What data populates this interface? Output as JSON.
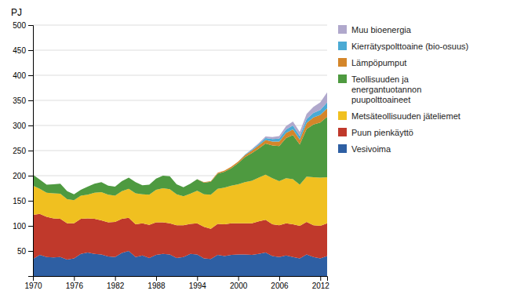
{
  "chart_data": {
    "type": "area",
    "stacked": true,
    "ylabel": "PJ",
    "x": [
      1970,
      1971,
      1972,
      1973,
      1974,
      1975,
      1976,
      1977,
      1978,
      1979,
      1980,
      1981,
      1982,
      1983,
      1984,
      1985,
      1986,
      1987,
      1988,
      1989,
      1990,
      1991,
      1992,
      1993,
      1994,
      1995,
      1996,
      1997,
      1998,
      1999,
      2000,
      2001,
      2002,
      2003,
      2004,
      2005,
      2006,
      2007,
      2008,
      2009,
      2010,
      2011,
      2012,
      2013
    ],
    "series": [
      {
        "name": "Vesivoima",
        "color": "#2E5FA3",
        "values": [
          34,
          42,
          38,
          37,
          38,
          33,
          35,
          44,
          47,
          44,
          43,
          39,
          38,
          46,
          50,
          38,
          41,
          36,
          42,
          44,
          43,
          36,
          38,
          44,
          43,
          35,
          34,
          42,
          40,
          42,
          43,
          43,
          42,
          44,
          47,
          40,
          38,
          41,
          38,
          35,
          43,
          38,
          35,
          40
        ]
      },
      {
        "name": "Puun pienkäyttö",
        "color": "#C0392B",
        "values": [
          88,
          82,
          80,
          78,
          76,
          72,
          70,
          70,
          68,
          70,
          68,
          68,
          70,
          68,
          66,
          65,
          64,
          66,
          65,
          63,
          62,
          65,
          63,
          60,
          62,
          63,
          60,
          62,
          63,
          63,
          62,
          62,
          63,
          65,
          65,
          63,
          63,
          64,
          65,
          65,
          65,
          63,
          65,
          65
        ]
      },
      {
        "name": "Metsäteollisuuden jäteliemet",
        "color": "#F0C020",
        "values": [
          58,
          50,
          48,
          50,
          50,
          48,
          46,
          46,
          47,
          52,
          56,
          55,
          52,
          55,
          58,
          62,
          58,
          60,
          65,
          68,
          68,
          62,
          58,
          60,
          65,
          65,
          68,
          70,
          73,
          75,
          78,
          82,
          85,
          87,
          90,
          92,
          88,
          90,
          90,
          82,
          90,
          96,
          96,
          92
        ]
      },
      {
        "name": "Teollisuuden ja\nenergantuotannon\npuupolttoaineet",
        "color": "#4E9A40",
        "values": [
          22,
          18,
          16,
          18,
          20,
          16,
          12,
          12,
          16,
          18,
          20,
          18,
          18,
          20,
          22,
          22,
          18,
          20,
          22,
          25,
          26,
          20,
          18,
          20,
          23,
          23,
          26,
          30,
          32,
          35,
          42,
          50,
          55,
          58,
          62,
          65,
          70,
          80,
          88,
          80,
          95,
          105,
          110,
          120
        ]
      },
      {
        "name": "Lämpöpumput",
        "color": "#D4862A",
        "values": [
          0,
          0,
          0,
          0,
          0,
          0,
          0,
          0,
          0,
          0,
          0,
          0,
          0,
          0,
          0,
          0,
          0,
          0,
          0,
          0,
          0,
          0,
          0,
          0,
          0,
          1,
          1,
          2,
          2,
          3,
          3,
          4,
          5,
          6,
          7,
          8,
          9,
          10,
          11,
          10,
          12,
          14,
          15,
          17
        ]
      },
      {
        "name": "Kierrätyspolttoaine (bio-osuus)",
        "color": "#4BAAD4",
        "values": [
          0,
          0,
          0,
          0,
          0,
          0,
          0,
          0,
          0,
          0,
          0,
          0,
          0,
          0,
          0,
          0,
          0,
          0,
          0,
          0,
          0,
          0,
          0,
          0,
          0,
          0,
          0,
          0,
          0,
          0,
          0,
          1,
          2,
          3,
          4,
          5,
          6,
          7,
          8,
          7,
          8,
          9,
          10,
          12
        ]
      },
      {
        "name": "Muu bioenergia",
        "color": "#B0A8CC",
        "values": [
          0,
          0,
          0,
          0,
          0,
          0,
          0,
          0,
          0,
          0,
          0,
          0,
          0,
          0,
          0,
          0,
          0,
          0,
          0,
          0,
          0,
          0,
          0,
          0,
          0,
          0,
          0,
          0,
          0,
          0,
          0,
          0,
          1,
          2,
          3,
          4,
          5,
          7,
          8,
          8,
          10,
          12,
          15,
          20
        ]
      }
    ],
    "xlim": [
      1970,
      2013
    ],
    "xticks": [
      1970,
      1976,
      1982,
      1988,
      1994,
      2000,
      2006,
      2012
    ],
    "ylim": [
      0,
      500
    ],
    "yticks": [
      50,
      100,
      150,
      200,
      250,
      300,
      350,
      400,
      450,
      500
    ],
    "grid": "y",
    "legend": "right"
  }
}
